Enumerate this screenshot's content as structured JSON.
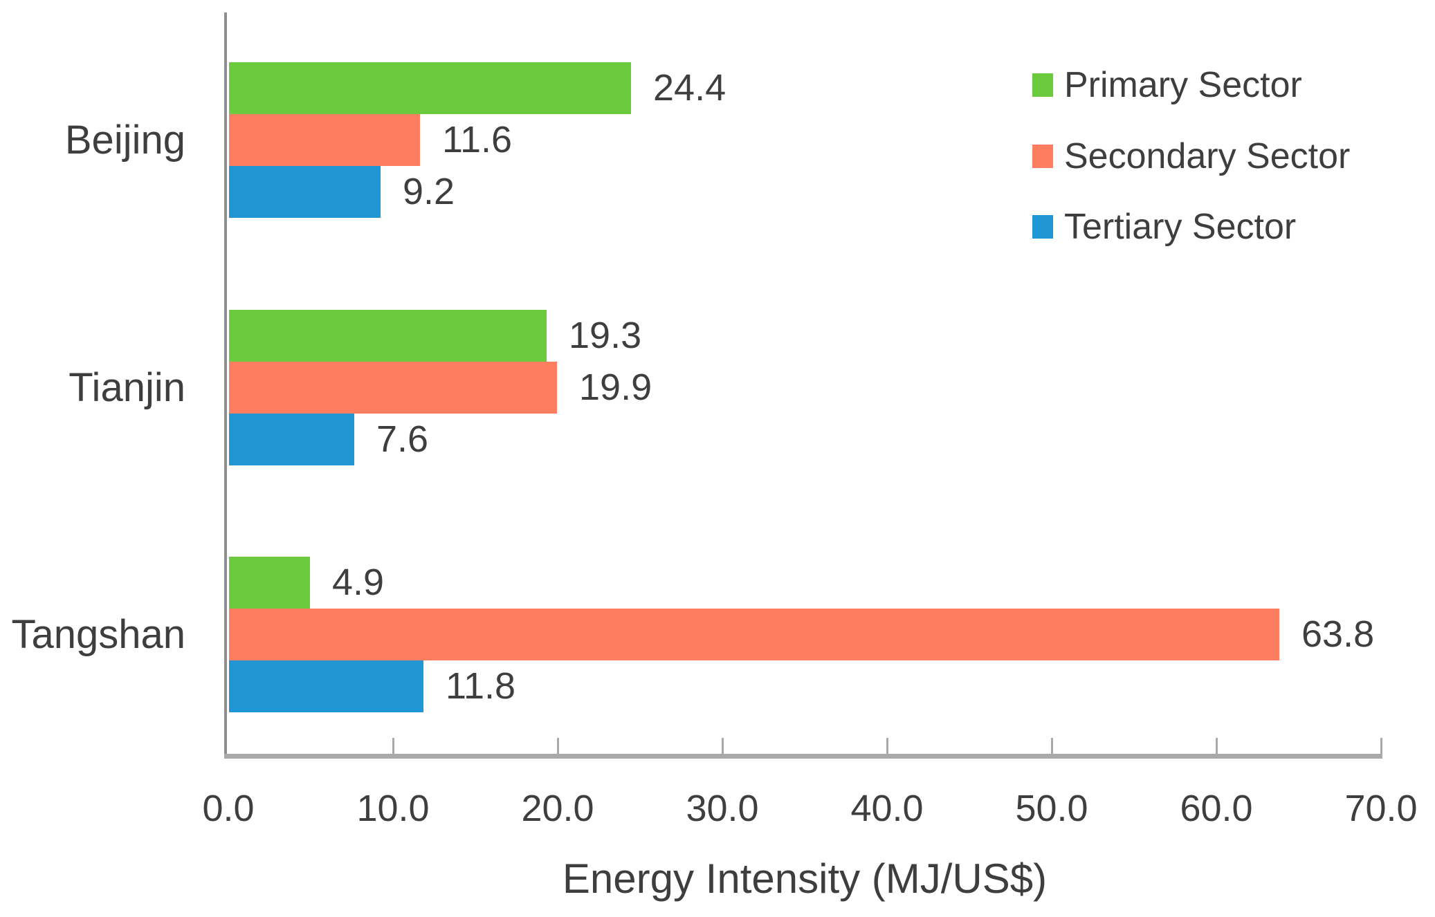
{
  "chart_data": {
    "type": "bar",
    "orientation": "horizontal",
    "title": "",
    "xlabel": "Energy Intensity (MJ/US$)",
    "ylabel": "",
    "categories": [
      "Beijing",
      "Tianjin",
      "Tangshan"
    ],
    "series": [
      {
        "name": "Primary Sector",
        "color": "#6bca3e",
        "values": [
          24.4,
          19.3,
          4.9
        ]
      },
      {
        "name": "Secondary Sector",
        "color": "#fc7d60",
        "values": [
          11.6,
          19.9,
          63.8
        ]
      },
      {
        "name": "Tertiary Sector",
        "color": "#2196d4",
        "values": [
          9.2,
          7.6,
          11.8
        ]
      }
    ],
    "xlim": [
      0,
      70
    ],
    "xtick_labels": [
      "0.0",
      "10.0",
      "20.0",
      "30.0",
      "40.0",
      "50.0",
      "60.0",
      "70.0"
    ],
    "data_labels": true,
    "data_label_decimals": 1,
    "grid": false,
    "legend_position": "top-right"
  },
  "style": {
    "text_color": "#3e3e3e",
    "y_axis_color": "#8e8e8e",
    "x_axis_color": "#a9a9a9"
  }
}
